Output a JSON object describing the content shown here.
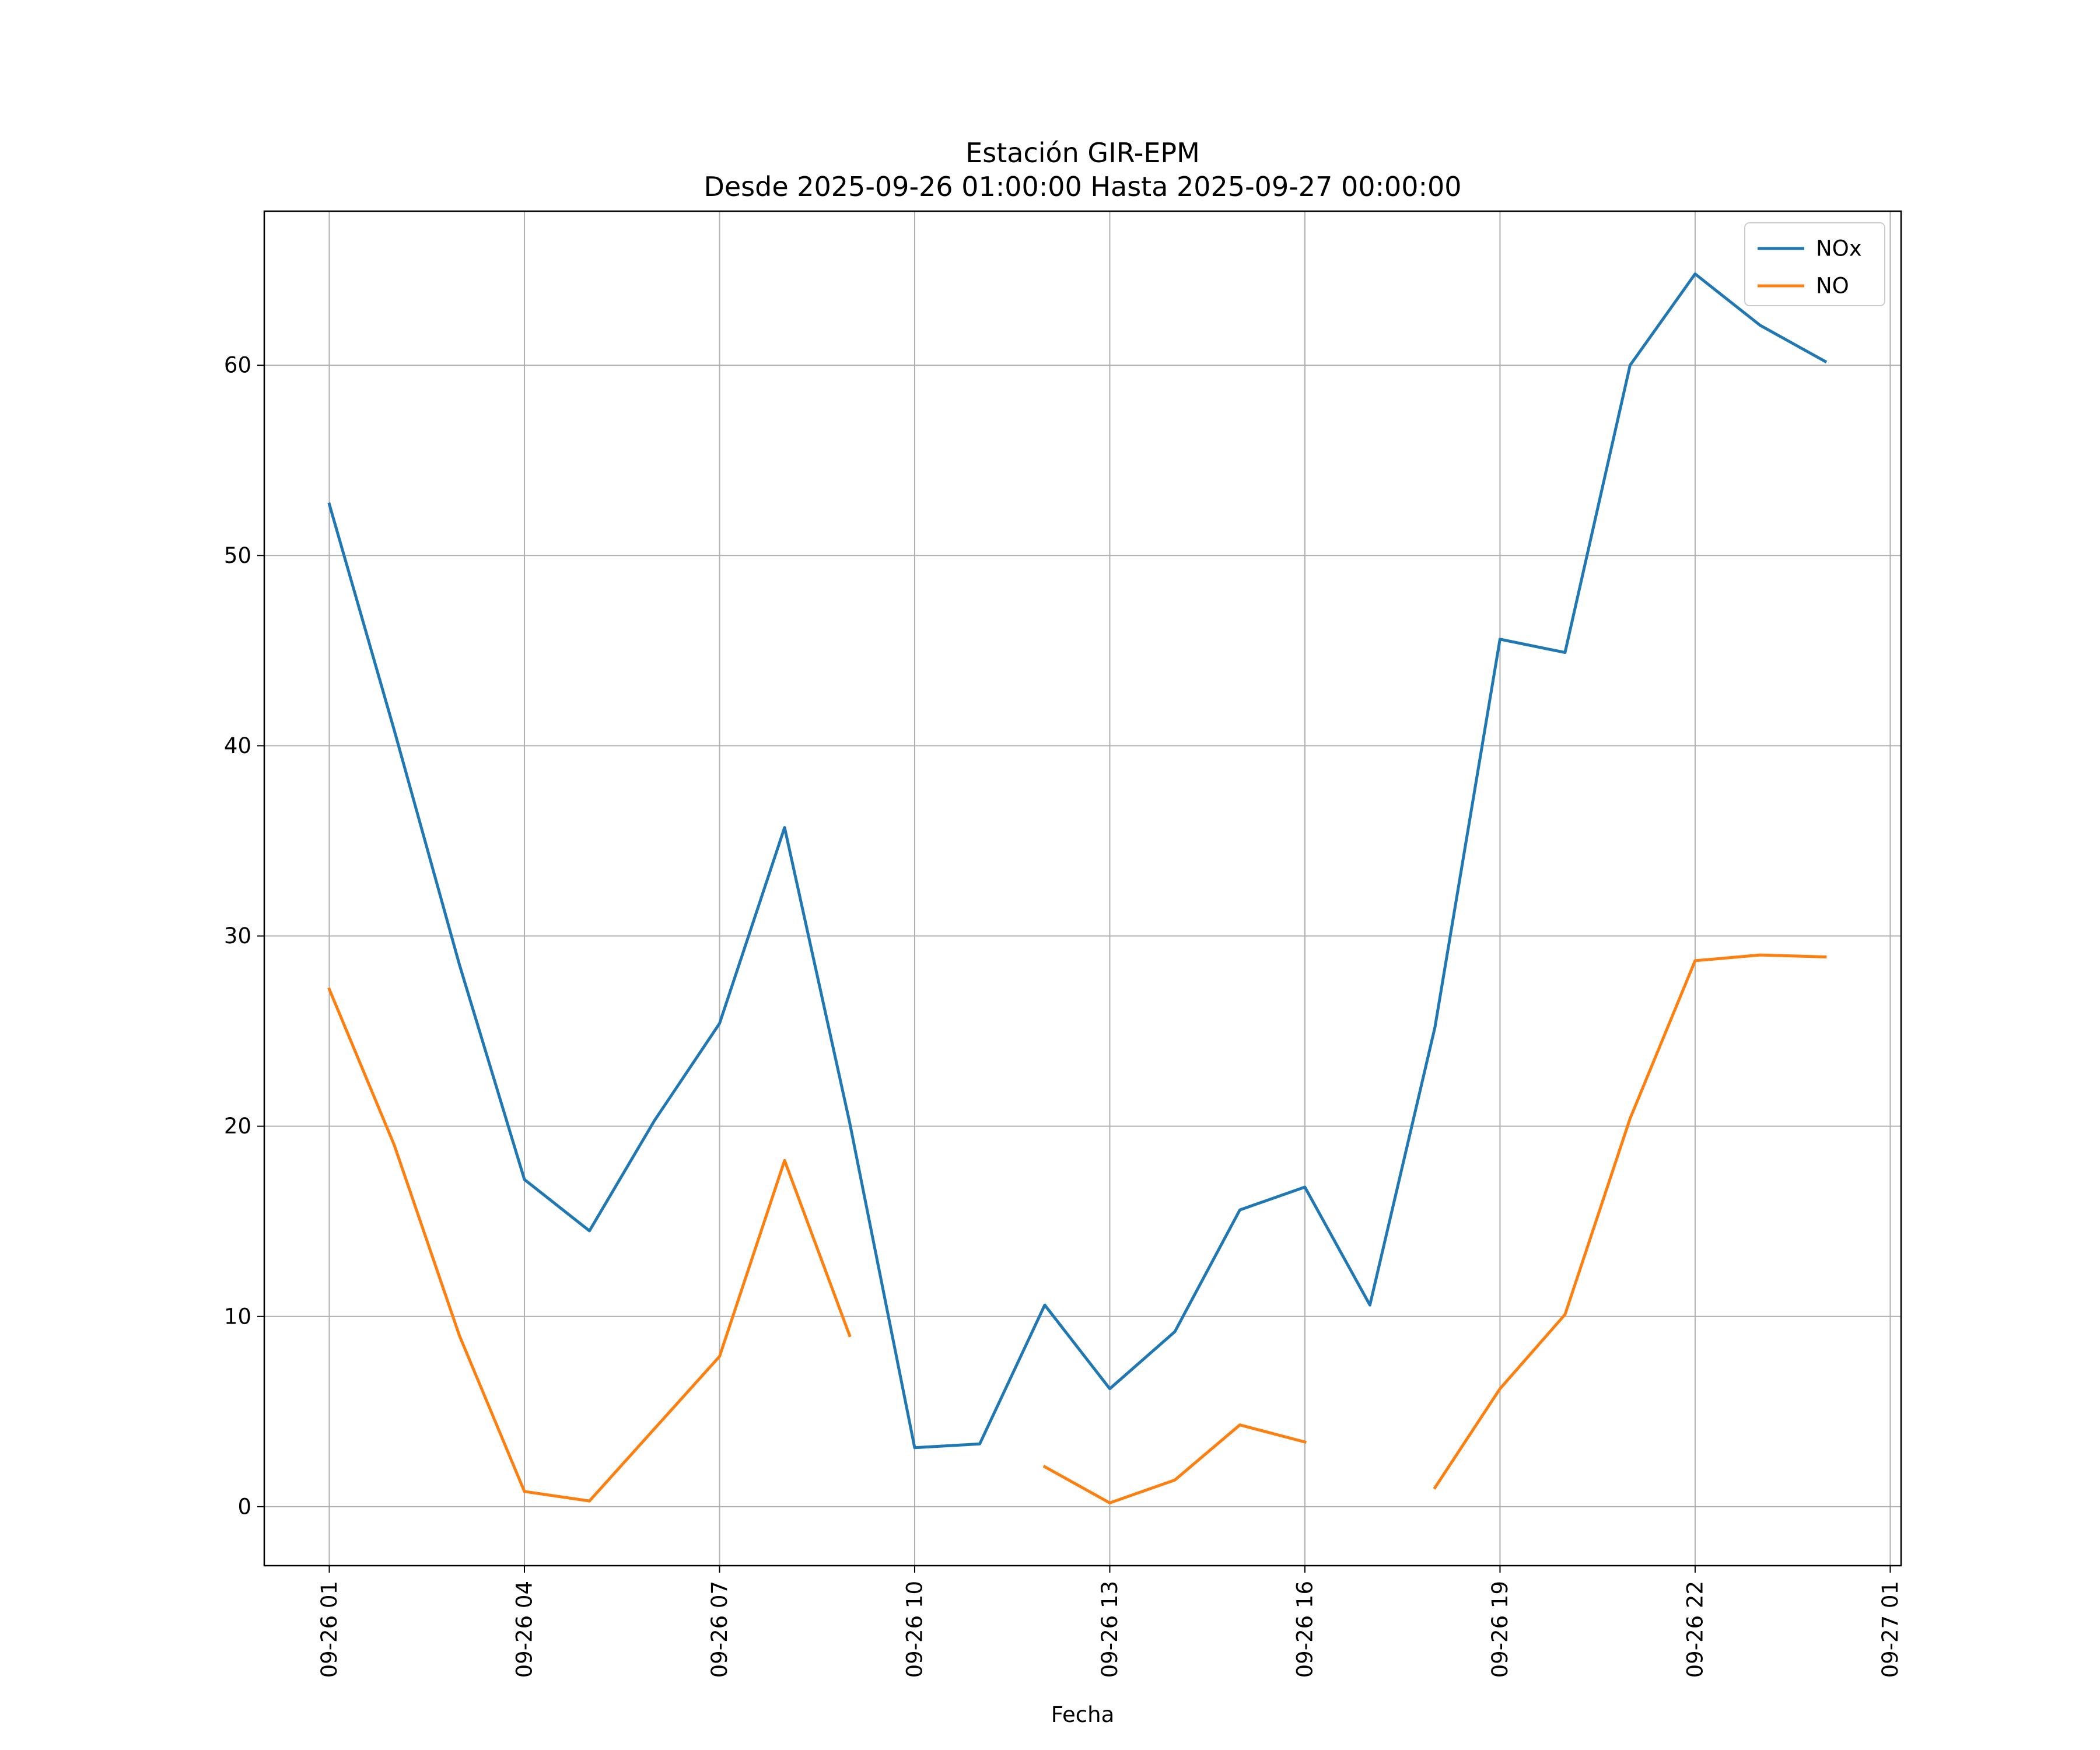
{
  "chart_data": {
    "type": "line",
    "title": "Estación GIR-EPM",
    "subtitle": "Desde 2025-09-26 01:00:00 Hasta 2025-09-27 00:00:00",
    "xlabel": "Fecha",
    "ylabel": "",
    "x": [
      "2025-09-26 01:00",
      "2025-09-26 02:00",
      "2025-09-26 03:00",
      "2025-09-26 04:00",
      "2025-09-26 05:00",
      "2025-09-26 06:00",
      "2025-09-26 07:00",
      "2025-09-26 08:00",
      "2025-09-26 09:00",
      "2025-09-26 10:00",
      "2025-09-26 11:00",
      "2025-09-26 12:00",
      "2025-09-26 13:00",
      "2025-09-26 14:00",
      "2025-09-26 15:00",
      "2025-09-26 16:00",
      "2025-09-26 17:00",
      "2025-09-26 18:00",
      "2025-09-26 19:00",
      "2025-09-26 20:00",
      "2025-09-26 21:00",
      "2025-09-26 22:00",
      "2025-09-26 23:00",
      "2025-09-27 00:00"
    ],
    "series": [
      {
        "name": "NOx",
        "color": "#1f77b4",
        "values": [
          52.7,
          40.8,
          28.5,
          17.2,
          14.5,
          20.3,
          25.4,
          35.7,
          20.2,
          3.1,
          3.3,
          10.6,
          6.2,
          9.2,
          15.6,
          16.8,
          10.6,
          25.2,
          45.6,
          44.9,
          60.0,
          64.8,
          62.1,
          60.2
        ]
      },
      {
        "name": "NO",
        "color": "#ff7f0e",
        "values": [
          27.2,
          19.0,
          9.0,
          0.8,
          0.3,
          4.1,
          7.9,
          18.2,
          9.0,
          null,
          null,
          2.1,
          0.2,
          1.4,
          4.3,
          3.4,
          null,
          1.0,
          6.2,
          10.1,
          20.4,
          28.7,
          29.0,
          28.9
        ]
      }
    ],
    "x_ticks": [
      "09-26 01",
      "09-26 04",
      "09-26 07",
      "09-26 10",
      "09-26 13",
      "09-26 16",
      "09-26 19",
      "09-26 22",
      "09-27 01"
    ],
    "y_ticks": [
      0,
      10,
      20,
      30,
      40,
      50,
      60
    ],
    "xlim": [
      "2025-09-26 00:00",
      "2025-09-27 01:10"
    ],
    "ylim": [
      -3.1,
      68.1
    ],
    "grid": true,
    "legend_position": "top-right"
  }
}
